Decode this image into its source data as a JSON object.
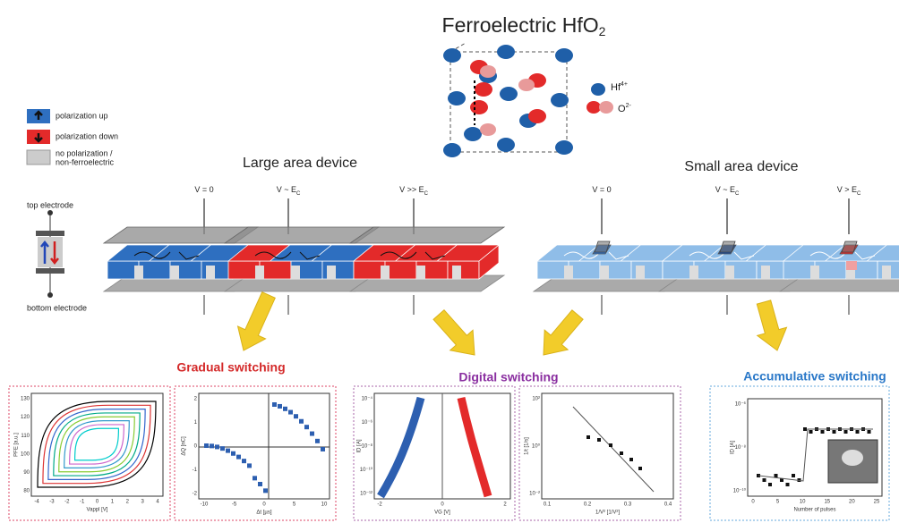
{
  "title": {
    "main": "Ferroelectric HfO",
    "sub": "2"
  },
  "crystal_legend": [
    {
      "main": "Hf",
      "sup": "4+"
    },
    {
      "main": "O",
      "sup": "2-"
    }
  ],
  "legend": [
    "polarization up",
    "polarization down",
    "no polarization /",
    "non-ferroelectric"
  ],
  "electrode": {
    "top": "top electrode",
    "bottom": "bottom electrode"
  },
  "large_device": {
    "title": "Large area device",
    "voltages": [
      {
        "main": "V = 0",
        "sub": ""
      },
      {
        "main": "V ~ E",
        "sub": "C"
      },
      {
        "main": "V >> E",
        "sub": "C"
      }
    ]
  },
  "small_device": {
    "title": "Small area device",
    "voltages": [
      {
        "main": "V = 0",
        "sub": ""
      },
      {
        "main": "V ~ E",
        "sub": "C"
      },
      {
        "main": "V > E",
        "sub": "C"
      }
    ]
  },
  "sections": [
    "Gradual switching",
    "Digital switching",
    "Accumulative switching"
  ],
  "plots": [
    {
      "xlabel": "Vappl [V]",
      "ylabel": "PFE [a.u.]",
      "xticks": [
        "-4",
        "-3",
        "-2",
        "-1",
        "0",
        "1",
        "2",
        "3",
        "4"
      ],
      "yticks": [
        "130",
        "120",
        "110",
        "100",
        "90",
        "80"
      ]
    },
    {
      "xlabel": "Δt [µs]",
      "ylabel": "ΔQ [nC]",
      "xticks": [
        "-10",
        "-5",
        "0",
        "5",
        "10"
      ],
      "yticks": [
        "2",
        "1",
        "0",
        "-1",
        "-2"
      ]
    },
    {
      "xlabel": "VG [V]",
      "ylabel": "ID [A]",
      "xticks": [
        "-2",
        "0",
        "2"
      ],
      "yticks": [
        "10⁻⁴",
        "10⁻⁶",
        "10⁻⁸",
        "10⁻¹⁰",
        "10⁻¹²"
      ]
    },
    {
      "xlabel": "1/V² [1/V²]",
      "ylabel": "1/t [1/s]",
      "xticks": [
        "0.1",
        "0.2",
        "0.3",
        "0.4"
      ],
      "yticks": [
        "10²",
        "10⁰",
        "10⁻²"
      ]
    },
    {
      "xlabel": "Number of pulses",
      "ylabel": "ID [A]",
      "xticks": [
        "0",
        "5",
        "10",
        "15",
        "20",
        "25"
      ],
      "yticks": [
        "10⁻⁶",
        "10⁻⁸",
        "10⁻¹⁰"
      ]
    }
  ]
}
